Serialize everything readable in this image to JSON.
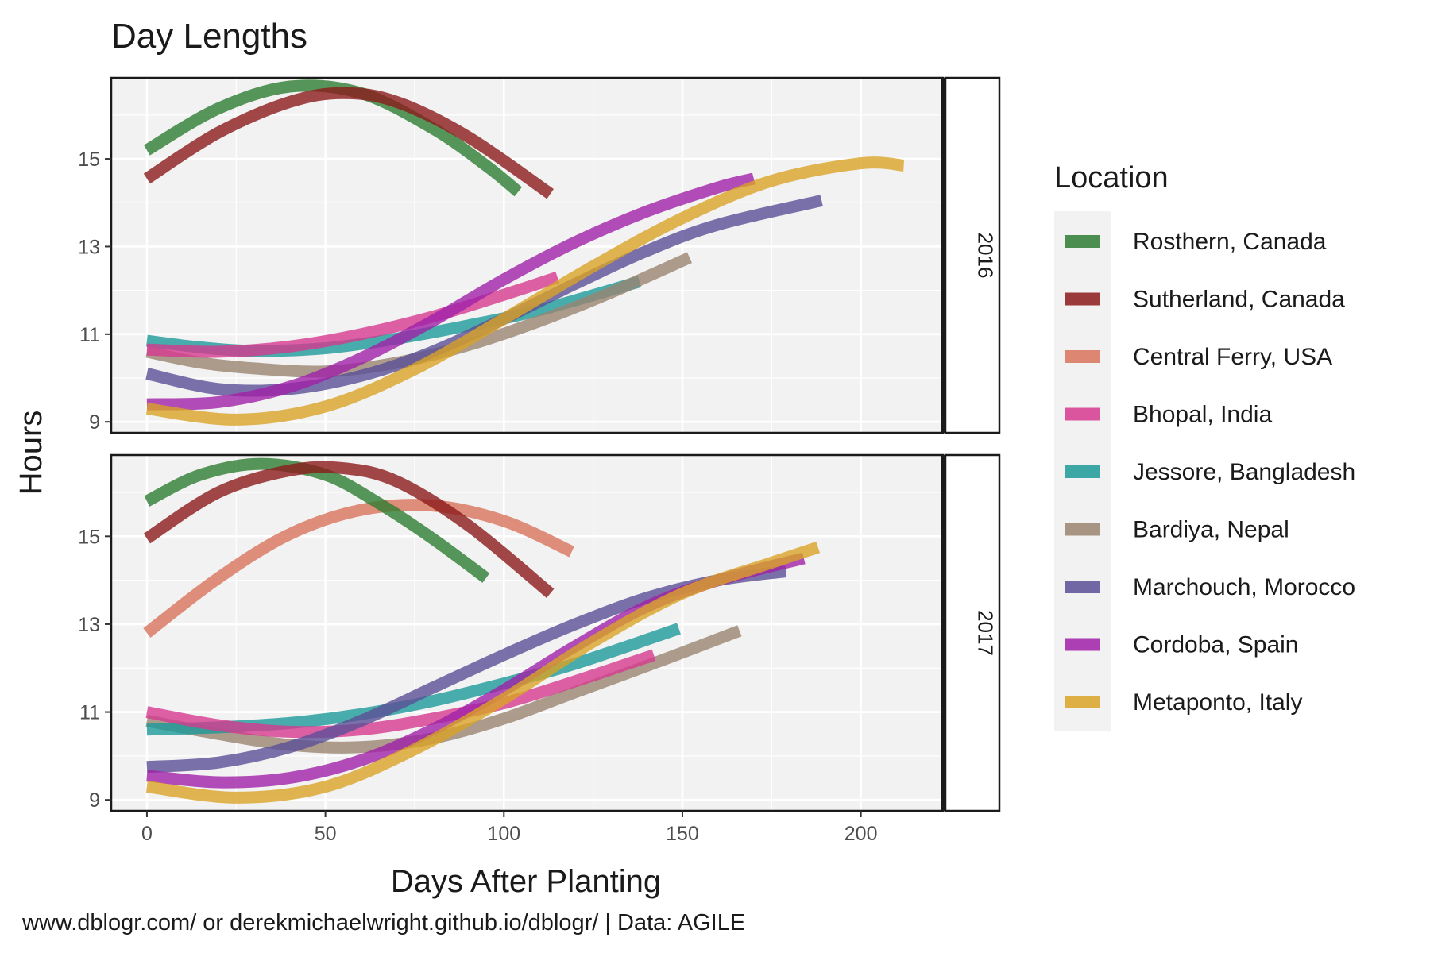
{
  "chart_data": {
    "type": "line",
    "title": "Day Lengths",
    "xlabel": "Days After Planting",
    "ylabel": "Hours",
    "caption": "www.dblogr.com/ or derekmichaelwright.github.io/dblogr/ | Data: AGILE",
    "xlim": [
      -10,
      223
    ],
    "ylim": [
      8.75,
      16.85
    ],
    "x_ticks": [
      0,
      50,
      100,
      150,
      200
    ],
    "y_ticks": [
      9,
      11,
      13,
      15
    ],
    "grid": true,
    "legend_title": "Location",
    "legend_position": "right",
    "legend": [
      {
        "name": "Rosthern, Canada",
        "color": "#2E7D32"
      },
      {
        "name": "Sutherland, Canada",
        "color": "#8B1A1A"
      },
      {
        "name": "Central Ferry, USA",
        "color": "#D9735C"
      },
      {
        "name": "Bhopal, India",
        "color": "#D63A8F"
      },
      {
        "name": "Jessore, Bangladesh",
        "color": "#1C9A98"
      },
      {
        "name": "Bardiya, Nepal",
        "color": "#9A8470"
      },
      {
        "name": "Marchouch, Morocco",
        "color": "#5B4F96"
      },
      {
        "name": "Cordoba, Spain",
        "color": "#A020A8"
      },
      {
        "name": "Metaponto, Italy",
        "color": "#D9A326"
      }
    ],
    "panels": [
      {
        "label": "2016",
        "series": [
          {
            "name": "Jessore, Bangladesh",
            "x": [
              0,
              15,
              30,
              50,
              70,
              90,
              110,
              138
            ],
            "y": [
              10.85,
              10.7,
              10.62,
              10.68,
              10.9,
              11.2,
              11.55,
              12.2
            ]
          },
          {
            "name": "Bardiya, Nepal",
            "x": [
              0,
              15,
              30,
              50,
              70,
              90,
              110,
              130,
              152
            ],
            "y": [
              10.6,
              10.35,
              10.22,
              10.15,
              10.35,
              10.75,
              11.3,
              11.95,
              12.75
            ]
          },
          {
            "name": "Bhopal, India",
            "x": [
              0,
              20,
              40,
              60,
              80,
              100,
              115
            ],
            "y": [
              10.65,
              10.6,
              10.72,
              11.0,
              11.4,
              11.9,
              12.3
            ]
          },
          {
            "name": "Marchouch, Morocco",
            "x": [
              0,
              20,
              40,
              60,
              80,
              100,
              120,
              140,
              160,
              189
            ],
            "y": [
              10.1,
              9.75,
              9.75,
              10.05,
              10.6,
              11.35,
              12.15,
              12.9,
              13.5,
              14.05
            ]
          },
          {
            "name": "Cordoba, Spain",
            "x": [
              0,
              20,
              40,
              60,
              80,
              100,
              120,
              140,
              160,
              170
            ],
            "y": [
              9.4,
              9.45,
              9.8,
              10.45,
              11.3,
              12.25,
              13.1,
              13.8,
              14.35,
              14.55
            ]
          },
          {
            "name": "Metaponto, Italy",
            "x": [
              0,
              25,
              50,
              75,
              100,
              125,
              150,
              175,
              200,
              212
            ],
            "y": [
              9.3,
              9.05,
              9.35,
              10.2,
              11.35,
              12.55,
              13.65,
              14.5,
              14.9,
              14.85
            ]
          },
          {
            "name": "Rosthern, Canada",
            "x": [
              0,
              20,
              40,
              60,
              80,
              95,
              104
            ],
            "y": [
              15.2,
              16.15,
              16.65,
              16.5,
              15.7,
              14.85,
              14.25
            ]
          },
          {
            "name": "Sutherland, Canada",
            "x": [
              0,
              20,
              40,
              55,
              70,
              90,
              113
            ],
            "y": [
              14.55,
              15.6,
              16.3,
              16.5,
              16.3,
              15.5,
              14.2
            ]
          }
        ]
      },
      {
        "label": "2017",
        "series": [
          {
            "name": "Central Ferry, USA",
            "x": [
              0,
              20,
              40,
              60,
              80,
              100,
              119
            ],
            "y": [
              12.8,
              14.05,
              15.05,
              15.6,
              15.7,
              15.35,
              14.65
            ]
          },
          {
            "name": "Bardiya, Nepal",
            "x": [
              0,
              20,
              40,
              60,
              80,
              100,
              120,
              145,
              166
            ],
            "y": [
              10.8,
              10.5,
              10.25,
              10.2,
              10.4,
              10.85,
              11.45,
              12.2,
              12.85
            ]
          },
          {
            "name": "Jessore, Bangladesh",
            "x": [
              0,
              20,
              40,
              60,
              80,
              100,
              120,
              149
            ],
            "y": [
              10.6,
              10.65,
              10.75,
              10.95,
              11.25,
              11.65,
              12.1,
              12.9
            ]
          },
          {
            "name": "Bhopal, India",
            "x": [
              0,
              20,
              40,
              60,
              80,
              100,
              120,
              142
            ],
            "y": [
              11.0,
              10.7,
              10.55,
              10.6,
              10.85,
              11.2,
              11.7,
              12.3
            ]
          },
          {
            "name": "Marchouch, Morocco",
            "x": [
              0,
              20,
              40,
              60,
              80,
              100,
              120,
              140,
              160,
              179
            ],
            "y": [
              9.75,
              9.85,
              10.2,
              10.8,
              11.55,
              12.3,
              13.0,
              13.6,
              14.0,
              14.2
            ]
          },
          {
            "name": "Cordoba, Spain",
            "x": [
              0,
              20,
              40,
              60,
              80,
              100,
              120,
              140,
              160,
              184
            ],
            "y": [
              9.55,
              9.4,
              9.5,
              9.9,
              10.6,
              11.5,
              12.5,
              13.4,
              14.0,
              14.5
            ]
          },
          {
            "name": "Metaponto, Italy",
            "x": [
              0,
              25,
              50,
              75,
              100,
              125,
              150,
              175,
              188
            ],
            "y": [
              9.3,
              9.05,
              9.3,
              10.15,
              11.3,
              12.6,
              13.7,
              14.4,
              14.75
            ]
          },
          {
            "name": "Rosthern, Canada",
            "x": [
              0,
              15,
              32,
              50,
              65,
              80,
              95
            ],
            "y": [
              15.8,
              16.4,
              16.65,
              16.4,
              15.75,
              14.95,
              14.05
            ]
          },
          {
            "name": "Sutherland, Canada",
            "x": [
              0,
              20,
              40,
              55,
              70,
              90,
              113
            ],
            "y": [
              14.95,
              16.0,
              16.5,
              16.55,
              16.25,
              15.25,
              13.7
            ]
          }
        ]
      }
    ]
  }
}
